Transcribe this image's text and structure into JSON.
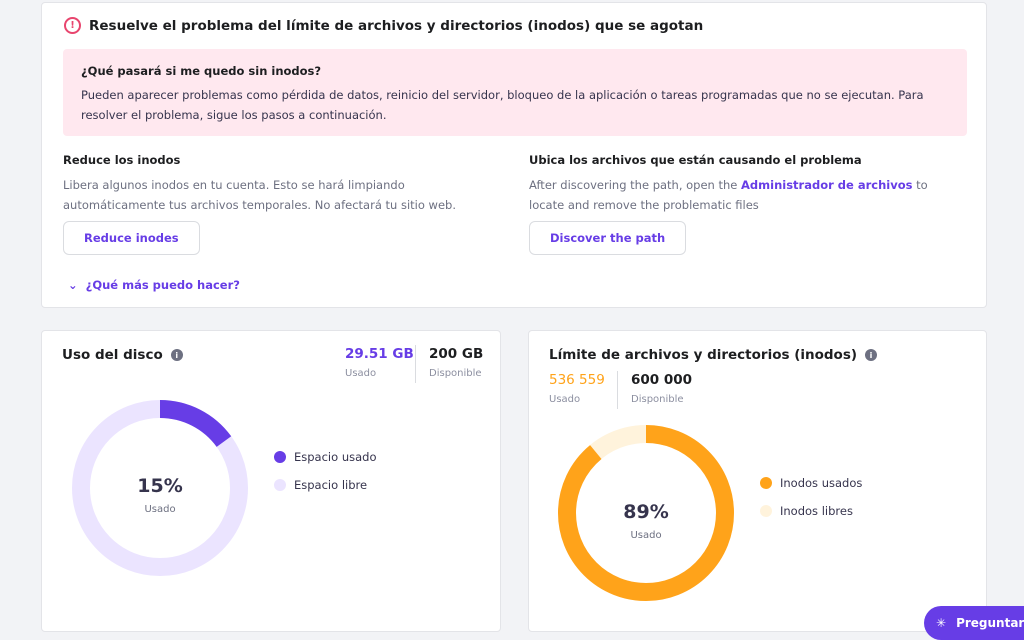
{
  "alert_card": {
    "title": "Resuelve el problema del límite de archivos y directorios (inodos) que se agotan",
    "alert_title": "¿Qué pasará si me quedo sin inodos?",
    "alert_text": "Pueden aparecer problemas como pérdida de datos, reinicio del servidor, bloqueo de la aplicación o tareas programadas que no se ejecutan. Para resolver el problema, sigue los pasos a continuación.",
    "reduce": {
      "title": "Reduce los inodos",
      "text": "Libera algunos inodos en tu cuenta. Esto se hará limpiando automáticamente tus archivos temporales. No afectará tu sitio web.",
      "button": "Reduce inodes"
    },
    "locate": {
      "title": "Ubica los archivos que están causando el problema",
      "text_before": "After discovering the path, open the ",
      "link": "Administrador de archivos",
      "text_after": " to locate and remove the problematic files",
      "button": "Discover the path"
    },
    "more": "¿Qué más puedo hacer?"
  },
  "disk": {
    "title": "Uso del disco",
    "used": "29.51 GB",
    "used_label": "Usado",
    "available": "200 GB",
    "available_label": "Disponible",
    "percent": 15,
    "percent_text": "15%",
    "center_label": "Usado",
    "legend": [
      "Espacio usado",
      "Espacio libre"
    ],
    "colors": {
      "used": "#673de6",
      "free": "#ebe4ff"
    }
  },
  "inodes": {
    "title": "Límite de archivos y directorios (inodos)",
    "used": "536 559",
    "used_label": "Usado",
    "available": "600 000",
    "available_label": "Disponible",
    "percent": 89,
    "percent_text": "89%",
    "center_label": "Usado",
    "legend": [
      "Inodos usados",
      "Inodos libres"
    ],
    "colors": {
      "used": "#ffa31a",
      "free": "#fff3dc"
    }
  },
  "chat": {
    "label": "Preguntar a"
  }
}
